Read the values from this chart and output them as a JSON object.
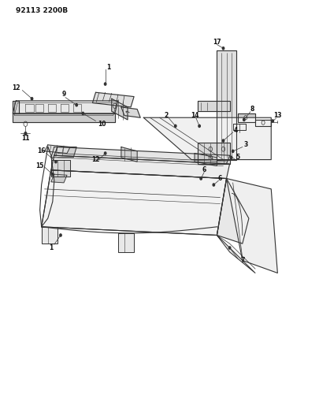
{
  "title": "92113 2200B",
  "bg_color": "#ffffff",
  "line_color": "#333333",
  "text_color": "#111111",
  "figsize": [
    4.05,
    5.33
  ],
  "dpi": 100
}
